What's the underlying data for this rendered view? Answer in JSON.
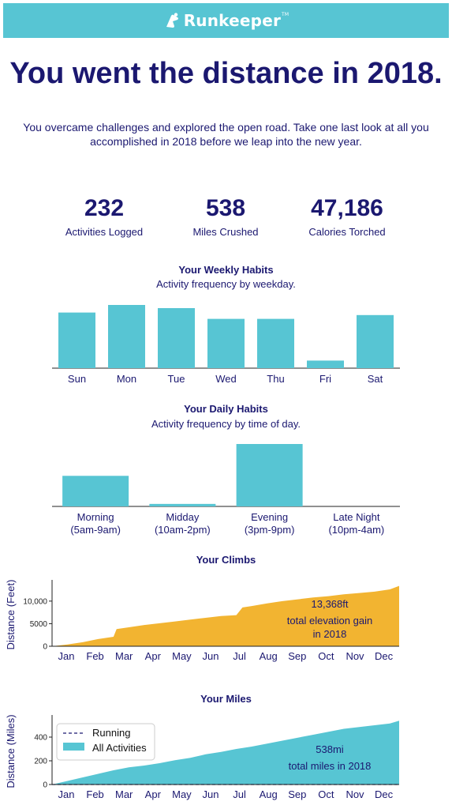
{
  "brand": {
    "name": "Runkeeper",
    "tm": "TM",
    "color": "#57c5d3"
  },
  "headline": "You went the distance in 2018.",
  "intro": {
    "line1": "You overcame challenges and explored the open road. Take one last look at all you",
    "line2": "accomplished in 2018 before we leap into the new year."
  },
  "stats": [
    {
      "value": "232",
      "label": "Activities Logged"
    },
    {
      "value": "538",
      "label": "Miles Crushed"
    },
    {
      "value": "47,186",
      "label": "Calories Torched"
    }
  ],
  "colors": {
    "teal": "#57c5d3",
    "amber": "#f2b431",
    "navy": "#1b1870",
    "axis": "#222222"
  },
  "weekly": {
    "title": "Your Weekly Habits",
    "subtitle": "Activity frequency by weekday.",
    "chart_data": {
      "type": "bar",
      "categories": [
        "Sun",
        "Mon",
        "Tue",
        "Wed",
        "Thu",
        "Fri",
        "Sat"
      ],
      "values": [
        0.88,
        1.0,
        0.95,
        0.78,
        0.78,
        0.12,
        0.84
      ]
    }
  },
  "daily": {
    "title": "Your Daily Habits",
    "subtitle": "Activity frequency by time of day.",
    "chart_data": {
      "type": "bar",
      "categories": [
        {
          "name": "Morning",
          "range": "(5am-9am)"
        },
        {
          "name": "Midday",
          "range": "(10am-2pm)"
        },
        {
          "name": "Evening",
          "range": "(3pm-9pm)"
        },
        {
          "name": "Late Night",
          "range": "(10pm-4am)"
        }
      ],
      "values": [
        0.49,
        0.04,
        1.0,
        0
      ]
    }
  },
  "climbs": {
    "title": "Your Climbs",
    "chart_data": {
      "type": "area",
      "xlabel": "",
      "ylabel": "Distance (Feet)",
      "ylim": [
        0,
        14000
      ],
      "yticks": [
        "0",
        "5000",
        "10,000"
      ],
      "ytick_values": [
        0,
        5000,
        10000
      ],
      "months": [
        "Jan",
        "Feb",
        "Mar",
        "Apr",
        "May",
        "Jun",
        "Jul",
        "Aug",
        "Sep",
        "Oct",
        "Nov",
        "Dec"
      ],
      "x": [
        0,
        0.5,
        1,
        1.5,
        2,
        2.1,
        2.5,
        3,
        3.5,
        4,
        4.5,
        5,
        5.5,
        6,
        6.2,
        6.5,
        7,
        7.5,
        8,
        8.5,
        9,
        9.5,
        10,
        10.5,
        11,
        11.3
      ],
      "y": [
        0,
        400,
        900,
        1600,
        2100,
        3800,
        4200,
        4700,
        5100,
        5500,
        5900,
        6300,
        6700,
        6900,
        8600,
        8900,
        9500,
        10000,
        10400,
        10800,
        11100,
        11500,
        11800,
        12100,
        12600,
        13368
      ],
      "annotation": {
        "value": "13,368ft",
        "line1": "total elevation gain",
        "line2": "in 2018"
      }
    }
  },
  "miles": {
    "title": "Your Miles",
    "chart_data": {
      "type": "area",
      "xlabel": "",
      "ylabel": "Distance (Miles)",
      "ylim": [
        0,
        560
      ],
      "yticks": [
        "0",
        "200",
        "400"
      ],
      "ytick_values": [
        0,
        200,
        400
      ],
      "months": [
        "Jan",
        "Feb",
        "Mar",
        "Apr",
        "May",
        "Jun",
        "Jul",
        "Aug",
        "Sep",
        "Oct",
        "Nov",
        "Dec"
      ],
      "legend": {
        "placement": "top-left",
        "running": "Running",
        "all": "All Activities"
      },
      "series": [
        {
          "name": "All Activities",
          "x": [
            0,
            0.5,
            1,
            1.5,
            2,
            2.5,
            3,
            3.5,
            4,
            4.5,
            5,
            5.5,
            6,
            6.5,
            7,
            7.5,
            8,
            8.5,
            9,
            9.5,
            10,
            10.5,
            11,
            11.3
          ],
          "y": [
            0,
            30,
            60,
            90,
            120,
            145,
            160,
            180,
            205,
            225,
            255,
            275,
            300,
            320,
            345,
            370,
            395,
            420,
            445,
            470,
            485,
            500,
            515,
            538
          ]
        },
        {
          "name": "Running",
          "x": [
            0,
            11.3
          ],
          "y": [
            0,
            0
          ]
        }
      ],
      "annotation": {
        "value": "538mi",
        "line1": "total miles in 2018"
      }
    }
  }
}
